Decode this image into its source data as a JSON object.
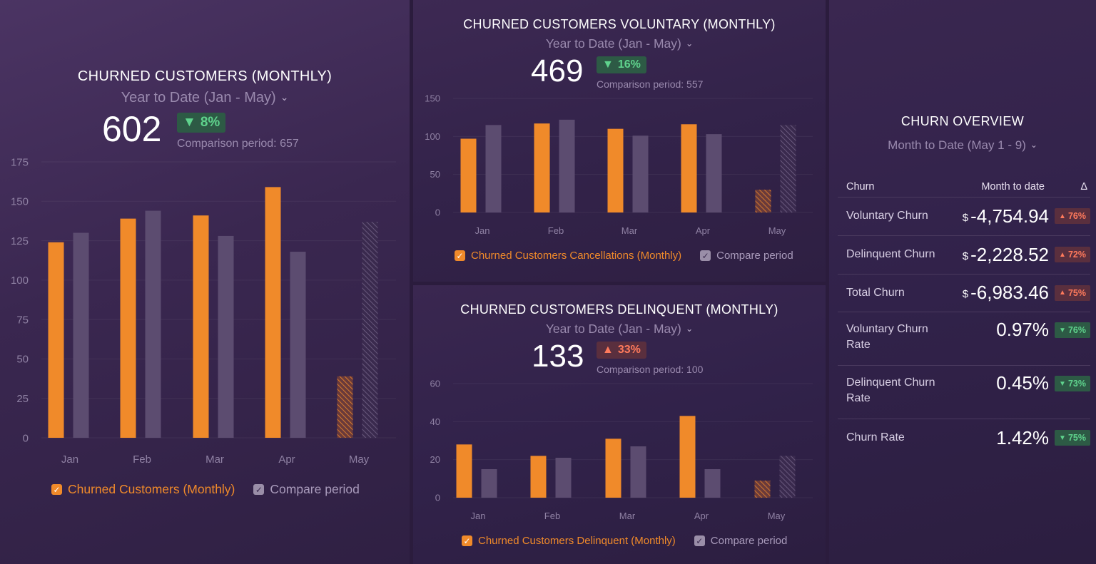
{
  "panels": {
    "churned": {
      "title": "CHURNED CUSTOMERS (MONTHLY)",
      "period": "Year to Date (Jan - May)",
      "value": "602",
      "delta": "8%",
      "delta_dir": "down",
      "comparison": "Comparison period: 657",
      "legend": {
        "primary": "Churned Customers (Monthly)",
        "compare": "Compare period"
      }
    },
    "voluntary": {
      "title": "CHURNED CUSTOMERS VOLUNTARY (MONTHLY)",
      "period": "Year to Date (Jan - May)",
      "value": "469",
      "delta": "16%",
      "delta_dir": "down",
      "comparison": "Comparison period: 557",
      "legend": {
        "primary": "Churned Customers Cancellations (Monthly)",
        "compare": "Compare period"
      }
    },
    "delinquent": {
      "title": "CHURNED CUSTOMERS DELINQUENT (MONTHLY)",
      "period": "Year to Date (Jan - May)",
      "value": "133",
      "delta": "33%",
      "delta_dir": "up",
      "comparison": "Comparison period: 100",
      "legend": {
        "primary": "Churned Customers Delinquent (Monthly)",
        "compare": "Compare period"
      }
    }
  },
  "overview": {
    "title": "CHURN OVERVIEW",
    "period": "Month to Date (May 1 - 9)",
    "headers": {
      "label": "Churn",
      "value": "Month to date",
      "delta": "Δ"
    },
    "rows": [
      {
        "label": "Voluntary Churn",
        "currency": "$",
        "value": "-4,754.94",
        "delta": "76%",
        "dir": "up"
      },
      {
        "label": "Delinquent Churn",
        "currency": "$",
        "value": "-2,228.52",
        "delta": "72%",
        "dir": "up"
      },
      {
        "label": "Total Churn",
        "currency": "$",
        "value": "-6,983.46",
        "delta": "75%",
        "dir": "up"
      },
      {
        "label": "Voluntary Churn Rate",
        "currency": "",
        "value": "0.97%",
        "delta": "76%",
        "dir": "down"
      },
      {
        "label": "Delinquent Churn Rate",
        "currency": "",
        "value": "0.45%",
        "delta": "73%",
        "dir": "down"
      },
      {
        "label": "Churn Rate",
        "currency": "",
        "value": "1.42%",
        "delta": "75%",
        "dir": "down"
      }
    ]
  },
  "colors": {
    "primary": "#f08a2a",
    "compare": "#5c4c70",
    "good": "#5fd38d",
    "bad": "#ff7a5c"
  },
  "chart_data": [
    {
      "type": "bar",
      "categories": [
        "Jan",
        "Feb",
        "Mar",
        "Apr",
        "May"
      ],
      "series": [
        {
          "name": "Churned Customers (Monthly)",
          "values": [
            124,
            139,
            141,
            159,
            39
          ]
        },
        {
          "name": "Compare period",
          "values": [
            130,
            144,
            128,
            118,
            137
          ]
        }
      ],
      "yticks": [
        0,
        25,
        50,
        75,
        100,
        125,
        150,
        175
      ],
      "ylim": [
        0,
        175
      ],
      "partial_last": true
    },
    {
      "type": "bar",
      "categories": [
        "Jan",
        "Feb",
        "Mar",
        "Apr",
        "May"
      ],
      "series": [
        {
          "name": "Churned Customers Cancellations (Monthly)",
          "values": [
            97,
            117,
            110,
            116,
            30
          ]
        },
        {
          "name": "Compare period",
          "values": [
            115,
            122,
            101,
            103,
            115
          ]
        }
      ],
      "yticks": [
        0,
        50,
        100,
        150
      ],
      "ylim": [
        0,
        150
      ],
      "partial_last": true
    },
    {
      "type": "bar",
      "categories": [
        "Jan",
        "Feb",
        "Mar",
        "Apr",
        "May"
      ],
      "series": [
        {
          "name": "Churned Customers Delinquent (Monthly)",
          "values": [
            28,
            22,
            31,
            43,
            9
          ]
        },
        {
          "name": "Compare period",
          "values": [
            15,
            21,
            27,
            15,
            22
          ]
        }
      ],
      "yticks": [
        0,
        20,
        40,
        60
      ],
      "ylim": [
        0,
        60
      ],
      "partial_last": true
    }
  ]
}
